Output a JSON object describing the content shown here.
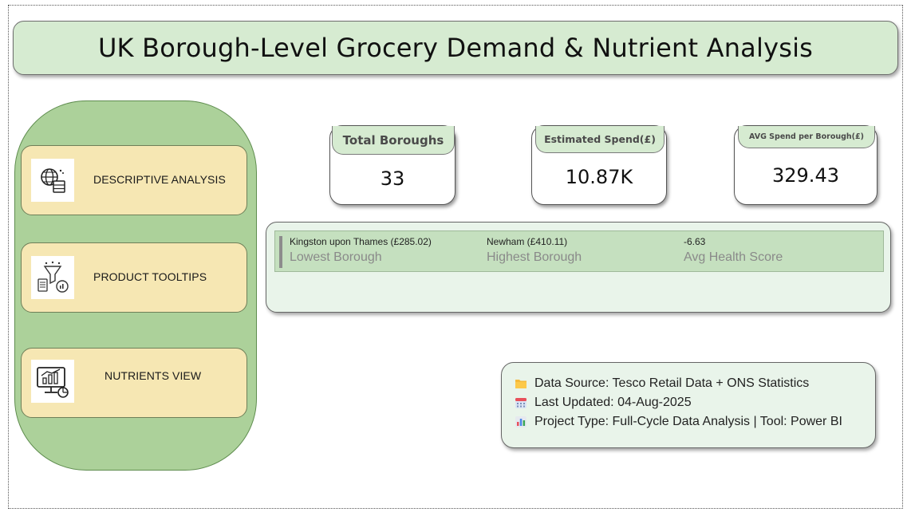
{
  "title": "UK Borough-Level Grocery Demand & Nutrient Analysis",
  "nav": [
    {
      "label": "DESCRIPTIVE ANALYSIS",
      "icon": "globe-database-icon"
    },
    {
      "label": "PRODUCT TOOLTIPS",
      "icon": "funnel-analytics-icon"
    },
    {
      "label": "NUTRIENTS VIEW",
      "icon": "monitor-chart-icon"
    }
  ],
  "kpis": {
    "total_boroughs": {
      "label": "Total Boroughs",
      "value": "33"
    },
    "estimated_spend": {
      "label": "Estimated Spend(£)",
      "value": "10.87K"
    },
    "avg_spend": {
      "label": "AVG Spend per Borough(£)",
      "value": "329.43"
    }
  },
  "stats": {
    "lowest": {
      "value": "Kingston upon Thames (£285.02)",
      "label": "Lowest Borough"
    },
    "highest": {
      "value": "Newham (£410.11)",
      "label": "Highest Borough"
    },
    "health": {
      "value": "-6.63",
      "label": "Avg Health Score"
    }
  },
  "info": {
    "source": "Data Source: Tesco Retail Data + ONS Statistics",
    "updated": "Last Updated: 04-Aug-2025",
    "project": "Project Type: Full-Cycle Data Analysis | Tool: Power BI"
  },
  "colors": {
    "title_bg": "#d6ebd1",
    "nav_panel": "#acd19a",
    "nav_button": "#f6e7b3",
    "stats_strip": "#c5e0bf",
    "card_bg": "#e9f4ea"
  }
}
